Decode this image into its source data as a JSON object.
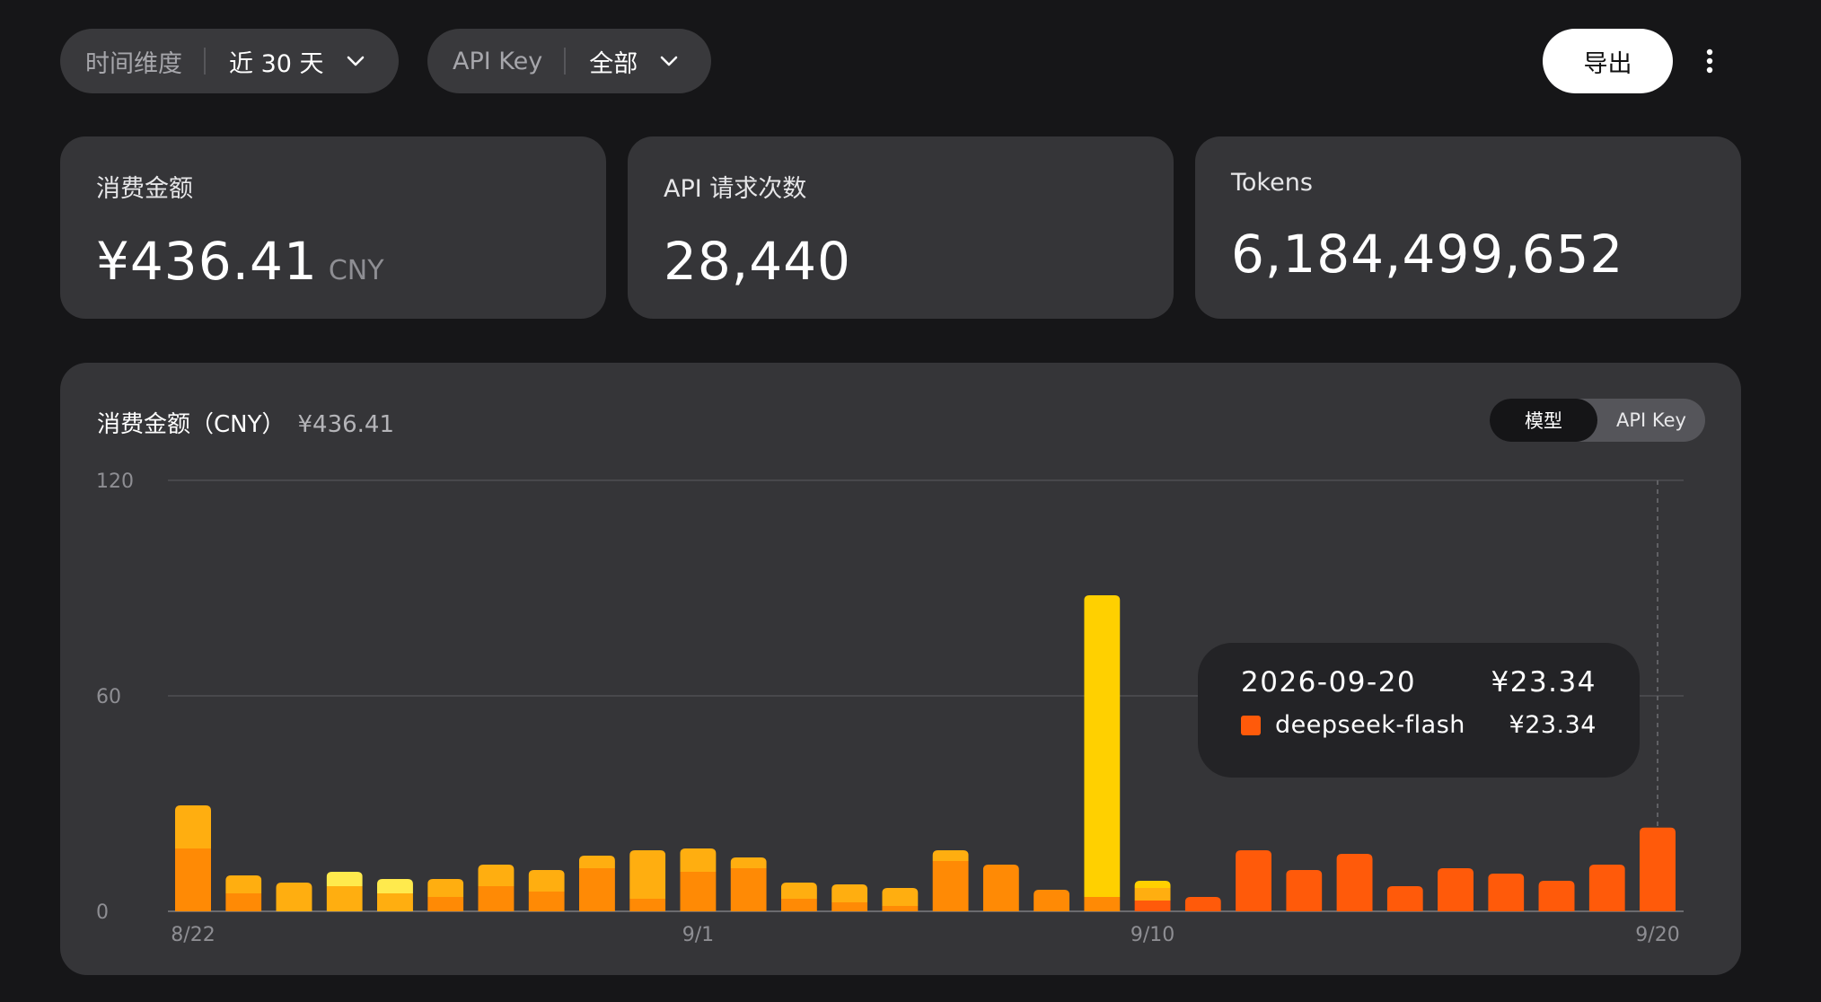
{
  "filters": {
    "time": {
      "label": "时间维度",
      "value": "近 30 天"
    },
    "apikey": {
      "label": "API Key",
      "value": "全部"
    }
  },
  "toolbar": {
    "export_label": "导出"
  },
  "cards": [
    {
      "title": "消费金额",
      "value": "¥436.41",
      "unit": "CNY"
    },
    {
      "title": "API 请求次数",
      "value": "28,440"
    },
    {
      "title": "Tokens",
      "value": "6,184,499,652"
    }
  ],
  "chart_panel": {
    "title": "消费金额（CNY）",
    "total": "¥436.41",
    "toggle": {
      "active": "模型",
      "inactive": "API Key"
    }
  },
  "tooltip": {
    "date": "2026-09-20",
    "total": "¥23.34",
    "series_name": "deepseek-flash",
    "series_value": "¥23.34"
  },
  "colors": {
    "background": "#161618",
    "card": "#353538",
    "light-yellow": "#ffea4d",
    "yellow": "#ffd000",
    "amber": "#ffae10",
    "orange": "#ff8a05",
    "deep-orange": "#ff5a0a"
  },
  "chart_data": {
    "type": "bar",
    "stacked": true,
    "title": "消费金额（CNY）",
    "ylim": [
      0,
      120
    ],
    "yticks": [
      0,
      60,
      120
    ],
    "x_tick_labels": [
      "8/22",
      "9/1",
      "9/10",
      "9/20"
    ],
    "x_tick_positions": [
      0,
      10,
      19,
      29
    ],
    "categories": [
      "8/22",
      "8/23",
      "8/24",
      "8/25",
      "8/26",
      "8/27",
      "8/28",
      "8/29",
      "8/30",
      "8/31",
      "9/1",
      "9/2",
      "9/3",
      "9/4",
      "9/5",
      "9/6",
      "9/7",
      "9/8",
      "9/9",
      "9/10",
      "9/11",
      "9/12",
      "9/13",
      "9/14",
      "9/15",
      "9/16",
      "9/17",
      "9/18",
      "9/19",
      "9/20"
    ],
    "series": [
      {
        "color": "#ff5a0a",
        "values": [
          0,
          0,
          0,
          0,
          0,
          0,
          0,
          0,
          0,
          0,
          0,
          0,
          0,
          0,
          0,
          0,
          0,
          0,
          0,
          3,
          4,
          17,
          11.5,
          16,
          7,
          12,
          10.5,
          8.5,
          13,
          23.34
        ]
      },
      {
        "color": "#ff8a05",
        "values": [
          17.5,
          5,
          0,
          0,
          0,
          4,
          7,
          5.5,
          12,
          3.5,
          11,
          12,
          3.5,
          2.5,
          1.5,
          14,
          13,
          6,
          4,
          0,
          0,
          0,
          0,
          0,
          0,
          0,
          0,
          0,
          0,
          0
        ]
      },
      {
        "color": "#ffae10",
        "values": [
          12,
          5,
          8,
          7,
          5,
          5,
          6,
          6,
          3.5,
          13.5,
          6.5,
          3,
          4.5,
          5,
          5,
          3,
          0,
          0,
          0,
          3.5,
          0,
          0,
          0,
          0,
          0,
          0,
          0,
          0,
          0,
          0
        ]
      },
      {
        "color": "#ffd000",
        "values": [
          0,
          0,
          0,
          0,
          0,
          0,
          0,
          0,
          0,
          0,
          0,
          0,
          0,
          0,
          0,
          0,
          0,
          0,
          84,
          2,
          0,
          0,
          0,
          0,
          0,
          0,
          0,
          0,
          0,
          0
        ]
      },
      {
        "color": "#ffea4d",
        "values": [
          0,
          0,
          0,
          4,
          4,
          0,
          0,
          0,
          0,
          0,
          0,
          0,
          0,
          0,
          0,
          0,
          0,
          0,
          0,
          0,
          0,
          0,
          0,
          0,
          0,
          0,
          0,
          0,
          0,
          0
        ]
      }
    ],
    "grid": true,
    "hover_index": 29
  }
}
